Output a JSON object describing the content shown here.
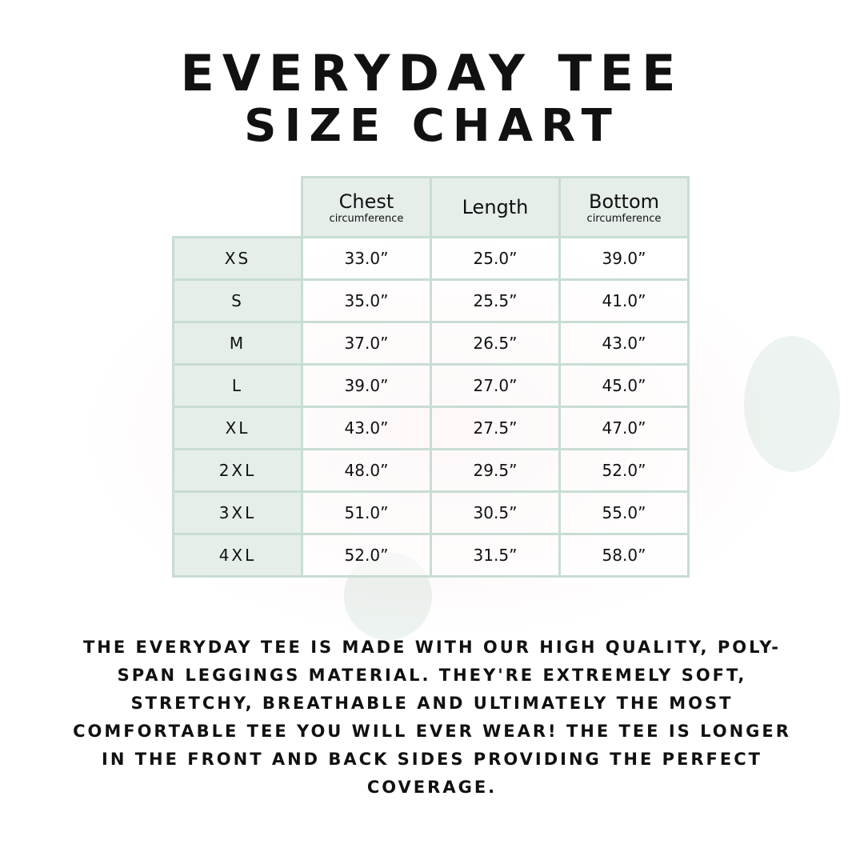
{
  "title_line1": "EVERYDAY TEE",
  "title_line2": "SIZE CHART",
  "chart_data": {
    "type": "table",
    "columns": [
      {
        "label": "Chest",
        "sublabel": "circumference"
      },
      {
        "label": "Length",
        "sublabel": ""
      },
      {
        "label": "Bottom",
        "sublabel": "circumference"
      }
    ],
    "rows": [
      {
        "size": "XS",
        "values": [
          "33.0”",
          "25.0”",
          "39.0”"
        ]
      },
      {
        "size": "S",
        "values": [
          "35.0”",
          "25.5”",
          "41.0”"
        ]
      },
      {
        "size": "M",
        "values": [
          "37.0”",
          "26.5”",
          "43.0”"
        ]
      },
      {
        "size": "L",
        "values": [
          "39.0”",
          "27.0”",
          "45.0”"
        ]
      },
      {
        "size": "XL",
        "values": [
          "43.0”",
          "27.5”",
          "47.0”"
        ]
      },
      {
        "size": "2XL",
        "values": [
          "48.0”",
          "29.5”",
          "52.0”"
        ]
      },
      {
        "size": "3XL",
        "values": [
          "51.0”",
          "30.5”",
          "55.0”"
        ]
      },
      {
        "size": "4XL",
        "values": [
          "52.0”",
          "31.5”",
          "58.0”"
        ]
      }
    ]
  },
  "description": "The Everyday Tee is made with our high quality, poly-span leggings material. They're extremely soft, stretchy, breathable and ultimately the most comfortable tee you will ever wear! The tee is longer in the front and back sides providing the perfect coverage.",
  "colors": {
    "header_bg": "#e5eee9",
    "border": "#c8ddd3"
  }
}
